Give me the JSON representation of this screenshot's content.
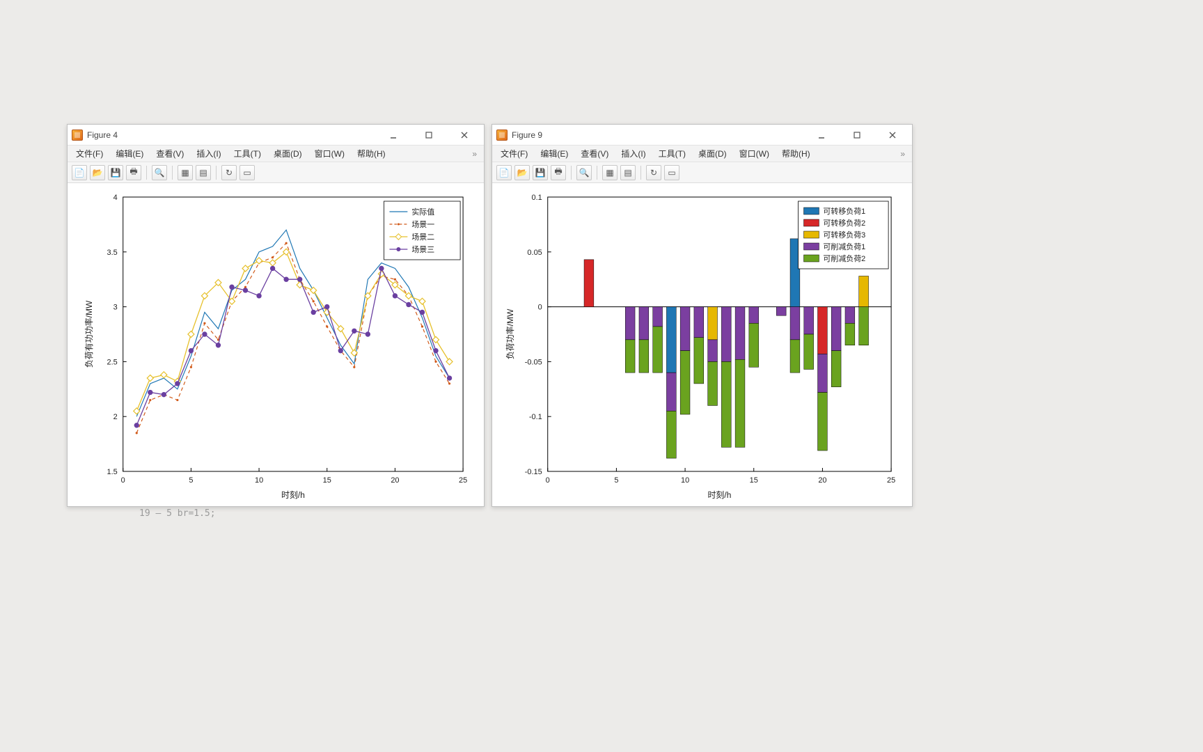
{
  "background_color": "#ecebe9",
  "windows": {
    "fig4": {
      "title": "Figure 4",
      "menus": [
        "文件(F)",
        "编辑(E)",
        "查看(V)",
        "插入(I)",
        "工具(T)",
        "桌面(D)",
        "窗口(W)",
        "帮助(H)"
      ],
      "chart": {
        "type": "line",
        "xlabel": "时刻/h",
        "ylabel": "负荷有功功率/MW",
        "xlim": [
          0,
          25
        ],
        "xticks": [
          0,
          5,
          10,
          15,
          20,
          25
        ],
        "ylim": [
          1.5,
          4
        ],
        "yticks": [
          1.5,
          2,
          2.5,
          3,
          3.5,
          4
        ],
        "axes_color": "#000000",
        "grid": false,
        "legend_pos": "top-right",
        "legend": [
          "实际值",
          "场景一",
          "场景二",
          "场景三"
        ],
        "series": [
          {
            "name": "实际值",
            "color": "#1f77b4",
            "style": "solid",
            "marker": "none",
            "width": 1.2,
            "y": [
              2.0,
              2.3,
              2.35,
              2.25,
              2.55,
              2.95,
              2.8,
              3.15,
              3.25,
              3.5,
              3.55,
              3.7,
              3.35,
              3.15,
              2.9,
              2.65,
              2.48,
              3.25,
              3.4,
              3.35,
              3.18,
              2.9,
              2.55,
              2.35
            ]
          },
          {
            "name": "场景一",
            "color": "#d15a1a",
            "style": "dashed",
            "marker": "dot",
            "width": 1.2,
            "y": [
              1.85,
              2.15,
              2.2,
              2.15,
              2.45,
              2.85,
              2.7,
              3.05,
              3.18,
              3.4,
              3.45,
              3.58,
              3.25,
              3.05,
              2.82,
              2.6,
              2.45,
              3.1,
              3.28,
              3.25,
              3.1,
              2.82,
              2.5,
              2.3
            ]
          },
          {
            "name": "场景二",
            "color": "#e6c02a",
            "style": "solid",
            "marker": "diamond",
            "width": 1.3,
            "y": [
              2.05,
              2.35,
              2.38,
              2.32,
              2.75,
              3.1,
              3.22,
              3.05,
              3.35,
              3.42,
              3.4,
              3.5,
              3.2,
              3.15,
              2.95,
              2.8,
              2.58,
              3.1,
              3.3,
              3.2,
              3.1,
              3.05,
              2.7,
              2.5
            ]
          },
          {
            "name": "场景三",
            "color": "#6a3fa0",
            "style": "solid",
            "marker": "circle",
            "width": 1.3,
            "y": [
              1.92,
              2.22,
              2.2,
              2.3,
              2.6,
              2.75,
              2.65,
              3.18,
              3.15,
              3.1,
              3.35,
              3.25,
              3.25,
              2.95,
              3.0,
              2.6,
              2.78,
              2.75,
              3.35,
              3.1,
              3.02,
              2.95,
              2.6,
              2.35
            ]
          }
        ],
        "x": [
          1,
          2,
          3,
          4,
          5,
          6,
          7,
          8,
          9,
          10,
          11,
          12,
          13,
          14,
          15,
          16,
          17,
          18,
          19,
          20,
          21,
          22,
          23,
          24
        ]
      }
    },
    "fig9": {
      "title": "Figure 9",
      "menus": [
        "文件(F)",
        "编辑(E)",
        "查看(V)",
        "插入(I)",
        "工具(T)",
        "桌面(D)",
        "窗口(W)",
        "帮助(H)"
      ],
      "chart": {
        "type": "stacked-bar",
        "xlabel": "时刻/h",
        "ylabel": "负荷功率/MW",
        "xlim": [
          0,
          25
        ],
        "xticks": [
          0,
          5,
          10,
          15,
          20,
          25
        ],
        "ylim": [
          -0.15,
          0.1
        ],
        "yticks": [
          -0.15,
          -0.1,
          -0.05,
          0,
          0.05,
          0.1
        ],
        "axes_color": "#000000",
        "bar_width": 0.7,
        "legend_pos": "top-right",
        "legend": [
          "可转移负荷1",
          "可转移负荷2",
          "可转移负荷3",
          "可削减负荷1",
          "可削减负荷2"
        ],
        "colors": {
          "s1": "#1f77b4",
          "s2": "#d62728",
          "s3": "#e6b800",
          "s4": "#7b3fa0",
          "s5": "#6aa31f"
        },
        "x": [
          1,
          2,
          3,
          4,
          5,
          6,
          7,
          8,
          9,
          10,
          11,
          12,
          13,
          14,
          15,
          16,
          17,
          18,
          19,
          20,
          21,
          22,
          23,
          24
        ],
        "stacks": [
          {
            "x": 3,
            "pos": [
              [
                "s2",
                0.043
              ]
            ],
            "neg": []
          },
          {
            "x": 6,
            "pos": [],
            "neg": [
              [
                "s4",
                0.03
              ],
              [
                "s5",
                0.03
              ]
            ]
          },
          {
            "x": 7,
            "pos": [],
            "neg": [
              [
                "s4",
                0.03
              ],
              [
                "s5",
                0.03
              ]
            ]
          },
          {
            "x": 8,
            "pos": [],
            "neg": [
              [
                "s4",
                0.018
              ],
              [
                "s5",
                0.042
              ]
            ]
          },
          {
            "x": 9,
            "pos": [],
            "neg": [
              [
                "s1",
                0.06
              ],
              [
                "s4",
                0.035
              ],
              [
                "s5",
                0.043
              ]
            ]
          },
          {
            "x": 10,
            "pos": [],
            "neg": [
              [
                "s4",
                0.04
              ],
              [
                "s5",
                0.058
              ]
            ]
          },
          {
            "x": 11,
            "pos": [],
            "neg": [
              [
                "s4",
                0.028
              ],
              [
                "s5",
                0.042
              ]
            ]
          },
          {
            "x": 12,
            "pos": [],
            "neg": [
              [
                "s3",
                0.03
              ],
              [
                "s4",
                0.02
              ],
              [
                "s5",
                0.04
              ]
            ]
          },
          {
            "x": 13,
            "pos": [],
            "neg": [
              [
                "s4",
                0.05
              ],
              [
                "s5",
                0.078
              ]
            ]
          },
          {
            "x": 14,
            "pos": [],
            "neg": [
              [
                "s4",
                0.048
              ],
              [
                "s5",
                0.08
              ]
            ]
          },
          {
            "x": 15,
            "pos": [],
            "neg": [
              [
                "s4",
                0.015
              ],
              [
                "s5",
                0.04
              ]
            ]
          },
          {
            "x": 17,
            "pos": [],
            "neg": [
              [
                "s4",
                0.008
              ]
            ]
          },
          {
            "x": 18,
            "pos": [
              [
                "s1",
                0.062
              ]
            ],
            "neg": [
              [
                "s4",
                0.03
              ],
              [
                "s5",
                0.03
              ]
            ]
          },
          {
            "x": 19,
            "pos": [],
            "neg": [
              [
                "s4",
                0.025
              ],
              [
                "s5",
                0.032
              ]
            ]
          },
          {
            "x": 20,
            "pos": [],
            "neg": [
              [
                "s2",
                0.043
              ],
              [
                "s4",
                0.035
              ],
              [
                "s5",
                0.053
              ]
            ]
          },
          {
            "x": 21,
            "pos": [],
            "neg": [
              [
                "s4",
                0.04
              ],
              [
                "s5",
                0.033
              ]
            ]
          },
          {
            "x": 22,
            "pos": [],
            "neg": [
              [
                "s4",
                0.015
              ],
              [
                "s5",
                0.02
              ]
            ]
          },
          {
            "x": 23,
            "pos": [
              [
                "s3",
                0.028
              ]
            ],
            "neg": [
              [
                "s5",
                0.035
              ]
            ]
          }
        ]
      }
    }
  },
  "editor_fragment": "19 —    5 br=1.5;"
}
